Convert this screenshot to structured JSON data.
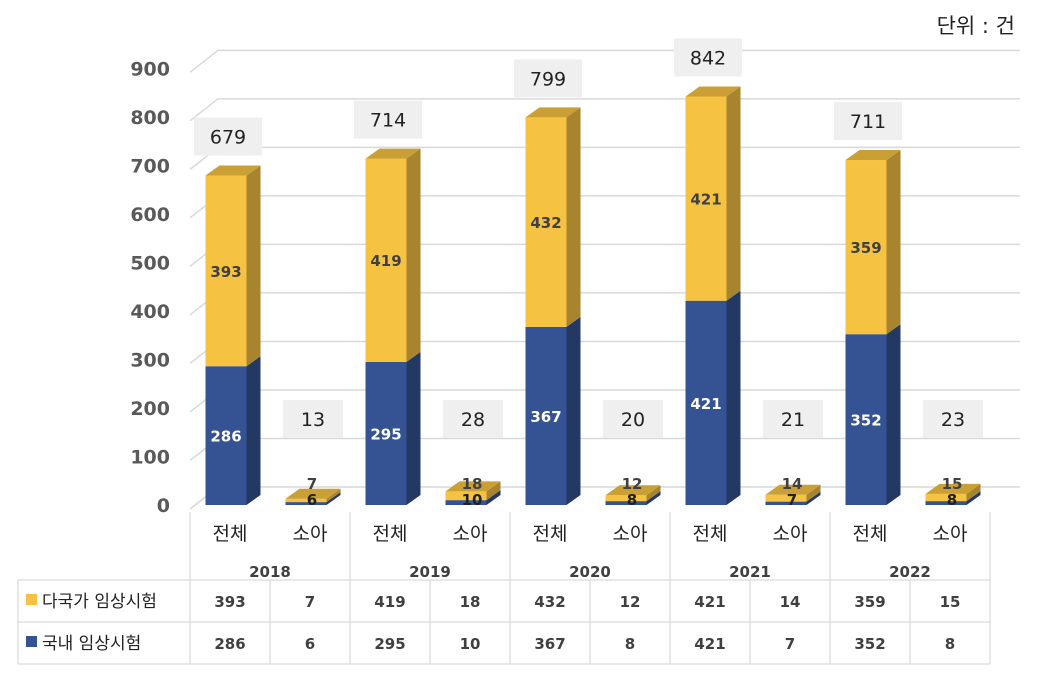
{
  "unit_label": "단위 : 건",
  "colors": {
    "multinational": "#F5C242",
    "domestic": "#355293",
    "grid": "#D9D9D9",
    "label_box": "#EFEFEF"
  },
  "chart_data": {
    "type": "bar",
    "stacked": true,
    "unit": "단위 : 건",
    "ylim": [
      0,
      900
    ],
    "yticks": [
      0,
      100,
      200,
      300,
      400,
      500,
      600,
      700,
      800,
      900
    ],
    "grid": true,
    "legend_position": "table-left",
    "years": [
      "2018",
      "2019",
      "2020",
      "2021",
      "2022"
    ],
    "subcategories": [
      "전체",
      "소아"
    ],
    "series": [
      {
        "name": "다국가 임상시험",
        "key": "multinational",
        "values": [
          [
            393,
            7
          ],
          [
            419,
            18
          ],
          [
            432,
            12
          ],
          [
            421,
            14
          ],
          [
            359,
            15
          ]
        ]
      },
      {
        "name": "국내 임상시험",
        "key": "domestic",
        "values": [
          [
            286,
            6
          ],
          [
            295,
            10
          ],
          [
            367,
            8
          ],
          [
            421,
            7
          ],
          [
            352,
            8
          ]
        ]
      }
    ],
    "totals": [
      [
        679,
        13
      ],
      [
        714,
        28
      ],
      [
        799,
        20
      ],
      [
        842,
        21
      ],
      [
        711,
        23
      ]
    ]
  }
}
